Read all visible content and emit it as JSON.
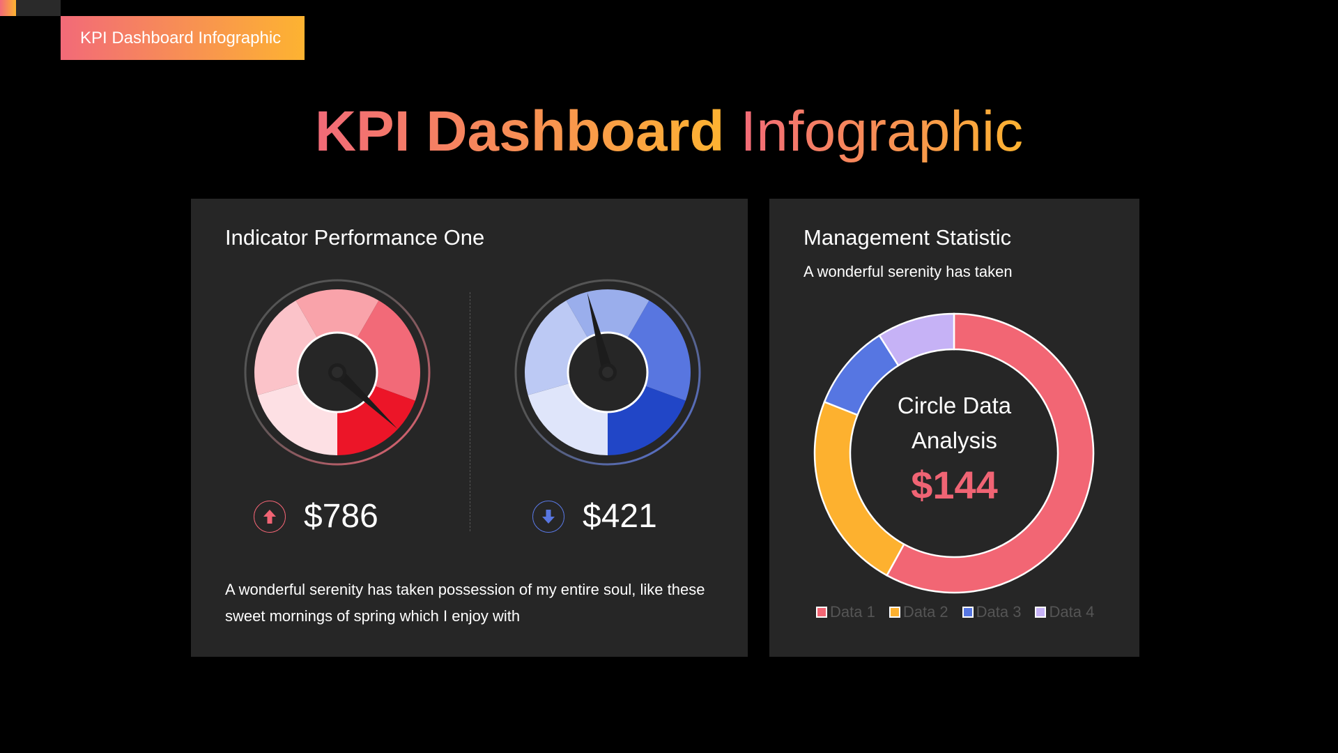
{
  "banner": {
    "label": "KPI Dashboard Infographic"
  },
  "title": {
    "bold": "KPI Dashboard",
    "regular": "Infographic"
  },
  "colors": {
    "accent_start": "#f26a78",
    "accent_end": "#fdb331"
  },
  "indicator": {
    "title": "Indicator Performance One",
    "gauges": [
      {
        "value": "$786",
        "trend": "up",
        "icon": "arrow-up-icon",
        "color": "#f06474",
        "segments": [
          "#fde0e4",
          "#fbc3c9",
          "#f9a3aa",
          "#f26a78",
          "#ec1528"
        ],
        "needle_level": 0.87
      },
      {
        "value": "$421",
        "trend": "down",
        "icon": "arrow-down-icon",
        "color": "#5876e0",
        "segments": [
          "#dfe5fa",
          "#bcc9f4",
          "#9aaeec",
          "#5876e0",
          "#2146c7"
        ],
        "needle_level": 0.46
      }
    ],
    "description": "A wonderful serenity has taken possession of my entire soul, like these sweet mornings of spring which I enjoy with"
  },
  "management": {
    "title": "Management Statistic",
    "subtitle": "A wonderful serenity has taken",
    "center_line1": "Circle Data",
    "center_line2": "Analysis",
    "center_value": "$144"
  },
  "chart_data": {
    "type": "pie",
    "donut": true,
    "categories": [
      "Data 1",
      "Data 2",
      "Data 3",
      "Data 4"
    ],
    "values": [
      58,
      23,
      10,
      9
    ],
    "colors": [
      "#f26674",
      "#fdb12f",
      "#5676e2",
      "#c6b2f6"
    ],
    "legend": "bottom"
  }
}
